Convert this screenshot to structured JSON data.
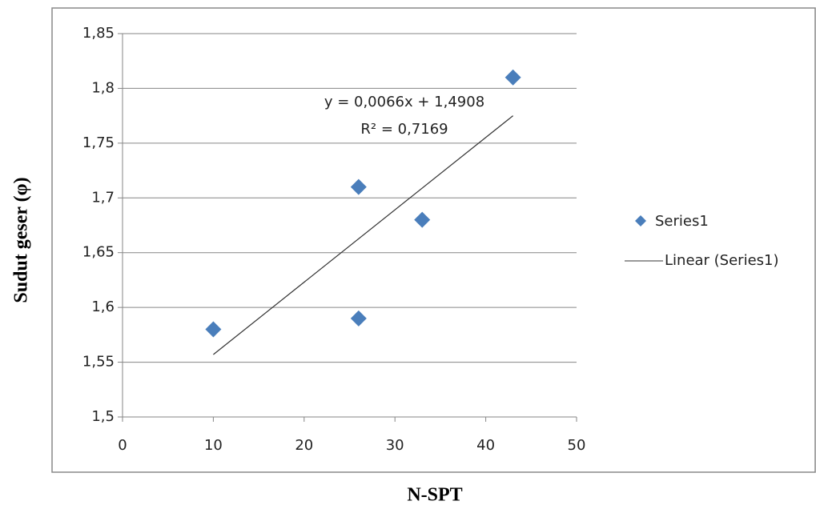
{
  "chart_data": {
    "type": "scatter",
    "x_label": "N-SPT",
    "y_label": "Sudut geser (φ)",
    "series": [
      {
        "name": "Series1",
        "color": "#4a7ebb",
        "x": [
          10,
          26,
          26,
          33,
          43
        ],
        "values": [
          1.58,
          1.59,
          1.71,
          1.68,
          1.81
        ]
      }
    ],
    "trendline": {
      "name": "Linear (Series1)",
      "color": "#333333",
      "x": [
        10,
        43
      ],
      "values": [
        1.557,
        1.775
      ],
      "equation": "y = 0,0066x + 1,4908",
      "r_squared": "R² = 0,7169"
    },
    "xlim": [
      0,
      50
    ],
    "xticks": [
      0,
      10,
      20,
      30,
      40,
      50
    ],
    "ylim": [
      1.5,
      1.85
    ],
    "yticks": [
      {
        "value": 1.5,
        "label": "1,5"
      },
      {
        "value": 1.55,
        "label": "1,55"
      },
      {
        "value": 1.6,
        "label": "1,6"
      },
      {
        "value": 1.65,
        "label": "1,65"
      },
      {
        "value": 1.7,
        "label": "1,7"
      },
      {
        "value": 1.75,
        "label": "1,75"
      },
      {
        "value": 1.8,
        "label": "1,8"
      },
      {
        "value": 1.85,
        "label": "1,85"
      }
    ],
    "grid": true,
    "legend": "right"
  }
}
